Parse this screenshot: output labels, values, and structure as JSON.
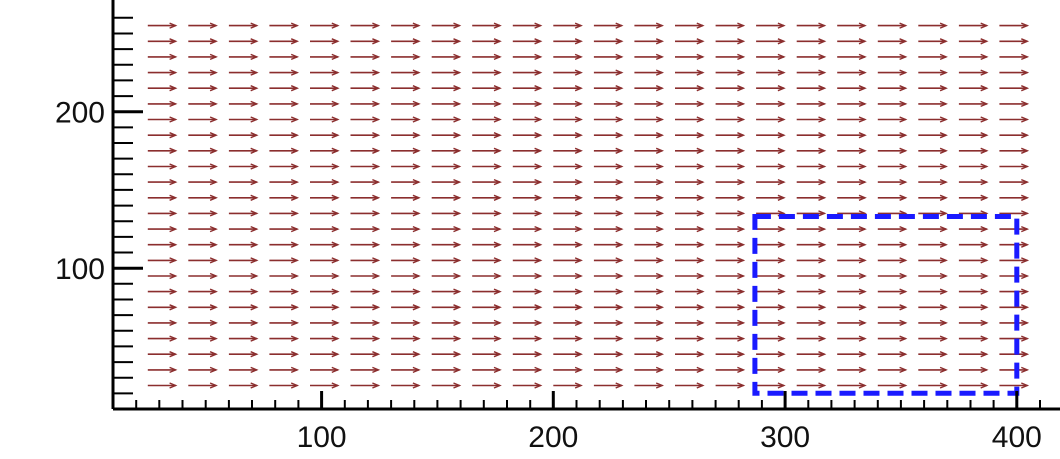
{
  "chart_data": {
    "type": "vector-field",
    "x_axis": {
      "range": [
        10,
        410
      ],
      "ticks": [
        100,
        200,
        300,
        400
      ],
      "tick_labels": [
        "100",
        "200",
        "300",
        "400"
      ]
    },
    "y_axis": {
      "range": [
        10,
        265
      ],
      "ticks": [
        100,
        200
      ],
      "tick_labels": [
        "100",
        "200"
      ]
    },
    "field": {
      "x_start": 25,
      "x_step": 17.5,
      "y_values": [
        25,
        35,
        45,
        55,
        65,
        75,
        85,
        95,
        105,
        115,
        125,
        135,
        145,
        155,
        165,
        175,
        185,
        195,
        205,
        215,
        225,
        235,
        245,
        255
      ],
      "direction": "east",
      "vector_dx": 12,
      "vector_dy": 0
    },
    "highlight_region": {
      "x": [
        287,
        400
      ],
      "y": [
        20,
        133
      ],
      "style": "dashed",
      "color": "#1a1aff"
    },
    "colors": {
      "vectors": "#8b2e2e",
      "axes": "#000000"
    },
    "grid": false,
    "legend": "none"
  }
}
